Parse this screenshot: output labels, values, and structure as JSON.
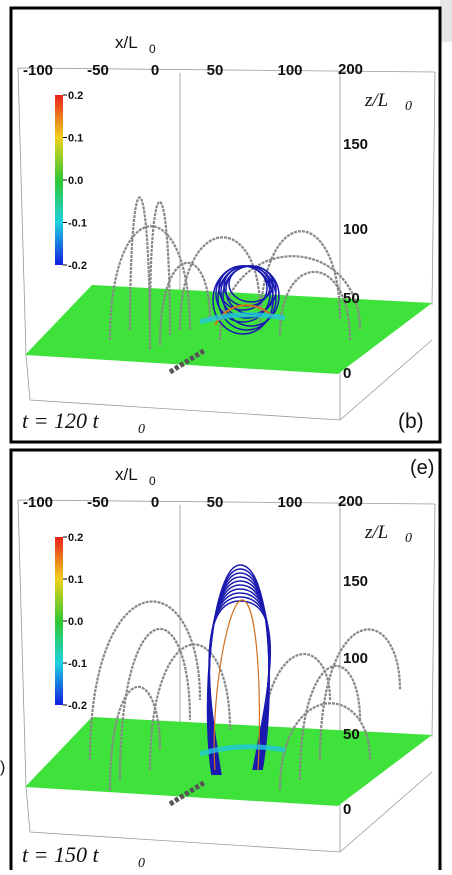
{
  "panels": [
    {
      "x_axis_label": "x/L",
      "x_axis_sub": "0",
      "x_ticks": [
        "-100",
        "-50",
        "0",
        "50",
        "100"
      ],
      "z_axis_label": "z/L",
      "z_axis_sub": "0",
      "z_ticks": [
        "200",
        "150",
        "100",
        "50",
        "0"
      ],
      "colorbar_ticks": [
        "0.2",
        "0.1",
        "0.0",
        "-0.1",
        "-0.2"
      ],
      "time_label": "t = 120 t",
      "time_sub": "0",
      "panel_label": "(b)"
    },
    {
      "x_axis_label": "x/L",
      "x_axis_sub": "0",
      "x_ticks": [
        "-100",
        "-50",
        "0",
        "50",
        "100"
      ],
      "z_axis_label": "z/L",
      "z_axis_sub": "0",
      "z_ticks": [
        "200",
        "150",
        "100",
        "50",
        "0"
      ],
      "colorbar_ticks": [
        "0.2",
        "0.1",
        "0.0",
        "-0.1",
        "-0.2"
      ],
      "time_label": "t = 150 t",
      "time_sub": "0",
      "panel_label": "(e)"
    }
  ],
  "edge_mark": ")"
}
